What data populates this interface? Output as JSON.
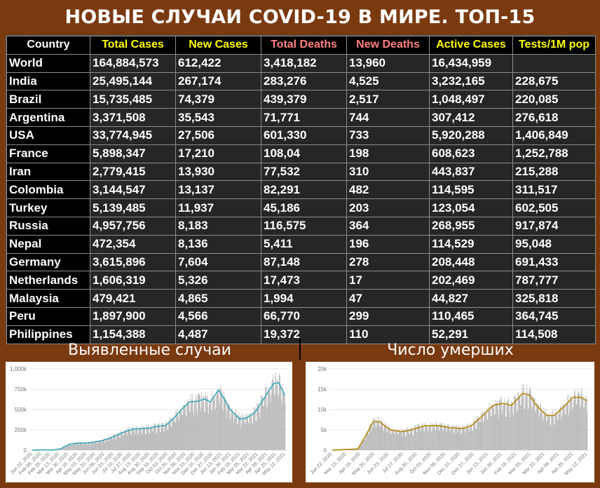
{
  "title": "НОВЫЕ СЛУЧАИ COVID-19 В МИРЕ. ТОП-15",
  "colors": {
    "background": "#7a3a10",
    "header_white": "#ffffff",
    "header_yellow": "#ffff00",
    "header_pink": "#ff8080",
    "cell_bg": "#262626",
    "cases_line": "#3aa6b9",
    "deaths_line": "#b8860b",
    "bars": "#b5b5b5"
  },
  "table": {
    "headers": [
      {
        "label": "Country",
        "color": "#ffffff"
      },
      {
        "label": "Total Cases",
        "color": "#ffff00"
      },
      {
        "label": "New Cases",
        "color": "#ffff00"
      },
      {
        "label": "Total Deaths",
        "color": "#ff8080"
      },
      {
        "label": "New Deaths",
        "color": "#ff8080"
      },
      {
        "label": "Active Cases",
        "color": "#ffff00"
      },
      {
        "label": "Tests/1M pop",
        "color": "#ffff00"
      }
    ],
    "rows": [
      [
        "World",
        "164,884,573",
        "612,422",
        "3,418,182",
        "13,960",
        "16,434,959",
        ""
      ],
      [
        "India",
        "25,495,144",
        "267,174",
        "283,276",
        "4,525",
        "3,232,165",
        "228,675"
      ],
      [
        "Brazil",
        "15,735,485",
        "74,379",
        "439,379",
        "2,517",
        "1,048,497",
        "220,085"
      ],
      [
        "Argentina",
        "3,371,508",
        "35,543",
        "71,771",
        "744",
        "307,412",
        "276,618"
      ],
      [
        "USA",
        "33,774,945",
        "27,506",
        "601,330",
        "733",
        "5,920,288",
        "1,406,849"
      ],
      [
        "France",
        "5,898,347",
        "17,210",
        "108,04",
        "198",
        "608,623",
        "1,252,788"
      ],
      [
        "Iran",
        "2,779,415",
        "13,930",
        "77,532",
        "310",
        "443,837",
        "215,288"
      ],
      [
        "Colombia",
        "3,144,547",
        "13,137",
        "82,291",
        "482",
        "114,595",
        "311,517"
      ],
      [
        "Turkey",
        "5,139,485",
        "11,937",
        "45,186",
        "203",
        "123,054",
        "602,505"
      ],
      [
        "Russia",
        "4,957,756",
        "8,183",
        "116,575",
        "364",
        "268,955",
        "917,874"
      ],
      [
        "Nepal",
        "472,354",
        "8,136",
        "5,411",
        "196",
        "114,529",
        "95,048"
      ],
      [
        "Germany",
        "3,615,896",
        "7,604",
        "87,148",
        "278",
        "208,448",
        "691,433"
      ],
      [
        "Netherlands",
        "1,606,319",
        "5,326",
        "17,473",
        "17",
        "202,469",
        "787,777"
      ],
      [
        "Malaysia",
        "479,421",
        "4,865",
        "1,994",
        "47",
        "44,827",
        "325,818"
      ],
      [
        "Peru",
        "1,897,900",
        "4,566",
        "66,770",
        "299",
        "110,465",
        "364,745"
      ],
      [
        "Philippines",
        "1,154,388",
        "4,487",
        "19,372",
        "110",
        "52,291",
        "114,508"
      ]
    ]
  },
  "chart_data": [
    {
      "type": "bar",
      "title": "Выявленные случаи",
      "yticks": [
        "0",
        "250k",
        "500k",
        "750k",
        "1,000k"
      ],
      "ylim": [
        0,
        1000000
      ],
      "xticks": [
        "Jan 22, 2020",
        "Feb 08, 2020",
        "Feb 25, 2020",
        "Mar 13, 2020",
        "Mar 30, 2020",
        "Apr 16, 2020",
        "May 03, 2020",
        "May 20, 2020",
        "Jun 06, 2020",
        "Jun 23, 2020",
        "Jul 10, 2020",
        "Jul 27, 2020",
        "Aug 13, 2020",
        "Aug 30, 2020",
        "Sep 16, 2020",
        "Oct 03, 2020",
        "Oct 20, 2020",
        "Nov 06, 2020",
        "Nov 23, 2020",
        "Dec 10, 2020",
        "Dec 27, 2020",
        "Jan 13, 2021",
        "Jan 30, 2021",
        "Feb 16, 2021",
        "Mar 05, 2021",
        "Mar 22, 2021",
        "Apr 08, 2021",
        "Apr 25, 2021",
        "May 12, 2021"
      ],
      "trend_points": [
        [
          "2020-01-22",
          500
        ],
        [
          "2020-02-10",
          3000
        ],
        [
          "2020-03-01",
          2000
        ],
        [
          "2020-03-15",
          15000
        ],
        [
          "2020-04-01",
          70000
        ],
        [
          "2020-04-15",
          85000
        ],
        [
          "2020-05-01",
          85000
        ],
        [
          "2020-05-15",
          95000
        ],
        [
          "2020-06-01",
          115000
        ],
        [
          "2020-06-15",
          140000
        ],
        [
          "2020-07-01",
          185000
        ],
        [
          "2020-07-15",
          225000
        ],
        [
          "2020-08-01",
          260000
        ],
        [
          "2020-08-15",
          265000
        ],
        [
          "2020-09-01",
          270000
        ],
        [
          "2020-09-15",
          295000
        ],
        [
          "2020-10-01",
          300000
        ],
        [
          "2020-10-15",
          380000
        ],
        [
          "2020-11-01",
          500000
        ],
        [
          "2020-11-15",
          590000
        ],
        [
          "2020-12-01",
          600000
        ],
        [
          "2020-12-15",
          630000
        ],
        [
          "2020-12-25",
          590000
        ],
        [
          "2021-01-10",
          740000
        ],
        [
          "2021-01-20",
          640000
        ],
        [
          "2021-02-01",
          500000
        ],
        [
          "2021-02-20",
          380000
        ],
        [
          "2021-03-05",
          400000
        ],
        [
          "2021-03-20",
          460000
        ],
        [
          "2021-04-05",
          620000
        ],
        [
          "2021-04-25",
          820000
        ],
        [
          "2021-05-05",
          830000
        ],
        [
          "2021-05-17",
          660000
        ]
      ]
    },
    {
      "type": "bar",
      "title": "Число умерших",
      "yticks": [
        "0",
        "5k",
        "10k",
        "15k",
        "20k"
      ],
      "ylim": [
        0,
        20000
      ],
      "xticks": [
        "Jan 22, 2020",
        "Mar 13, 2020",
        "Apr 16, 2020",
        "May 20, 2020",
        "Jun 23, 2020",
        "Jul 27, 2020",
        "Aug 30, 2020",
        "Oct 03, 2020",
        "Nov 06, 2020",
        "Dec 10, 2020",
        "Dec 27, 2020",
        "Jan 13, 2021",
        "Jan 30, 2021",
        "Feb 16, 2021",
        "Mar 05, 2021",
        "Mar 22, 2021",
        "Apr 08, 2021",
        "Apr 25, 2021",
        "May 12, 2021"
      ],
      "trend_points": [
        [
          "2020-01-22",
          0
        ],
        [
          "2020-03-10",
          300
        ],
        [
          "2020-03-25",
          3500
        ],
        [
          "2020-04-08",
          7000
        ],
        [
          "2020-04-20",
          7000
        ],
        [
          "2020-05-10",
          5000
        ],
        [
          "2020-06-01",
          4500
        ],
        [
          "2020-06-20",
          5000
        ],
        [
          "2020-07-15",
          6000
        ],
        [
          "2020-08-10",
          6000
        ],
        [
          "2020-09-01",
          5500
        ],
        [
          "2020-09-25",
          5300
        ],
        [
          "2020-10-10",
          6000
        ],
        [
          "2020-11-01",
          8500
        ],
        [
          "2020-11-20",
          11000
        ],
        [
          "2020-12-10",
          11500
        ],
        [
          "2020-12-25",
          11000
        ],
        [
          "2021-01-15",
          14000
        ],
        [
          "2021-01-28",
          13500
        ],
        [
          "2021-02-10",
          11000
        ],
        [
          "2021-03-01",
          8500
        ],
        [
          "2021-03-15",
          8500
        ],
        [
          "2021-04-01",
          10500
        ],
        [
          "2021-04-20",
          13000
        ],
        [
          "2021-05-05",
          13000
        ],
        [
          "2021-05-17",
          12000
        ]
      ]
    }
  ]
}
